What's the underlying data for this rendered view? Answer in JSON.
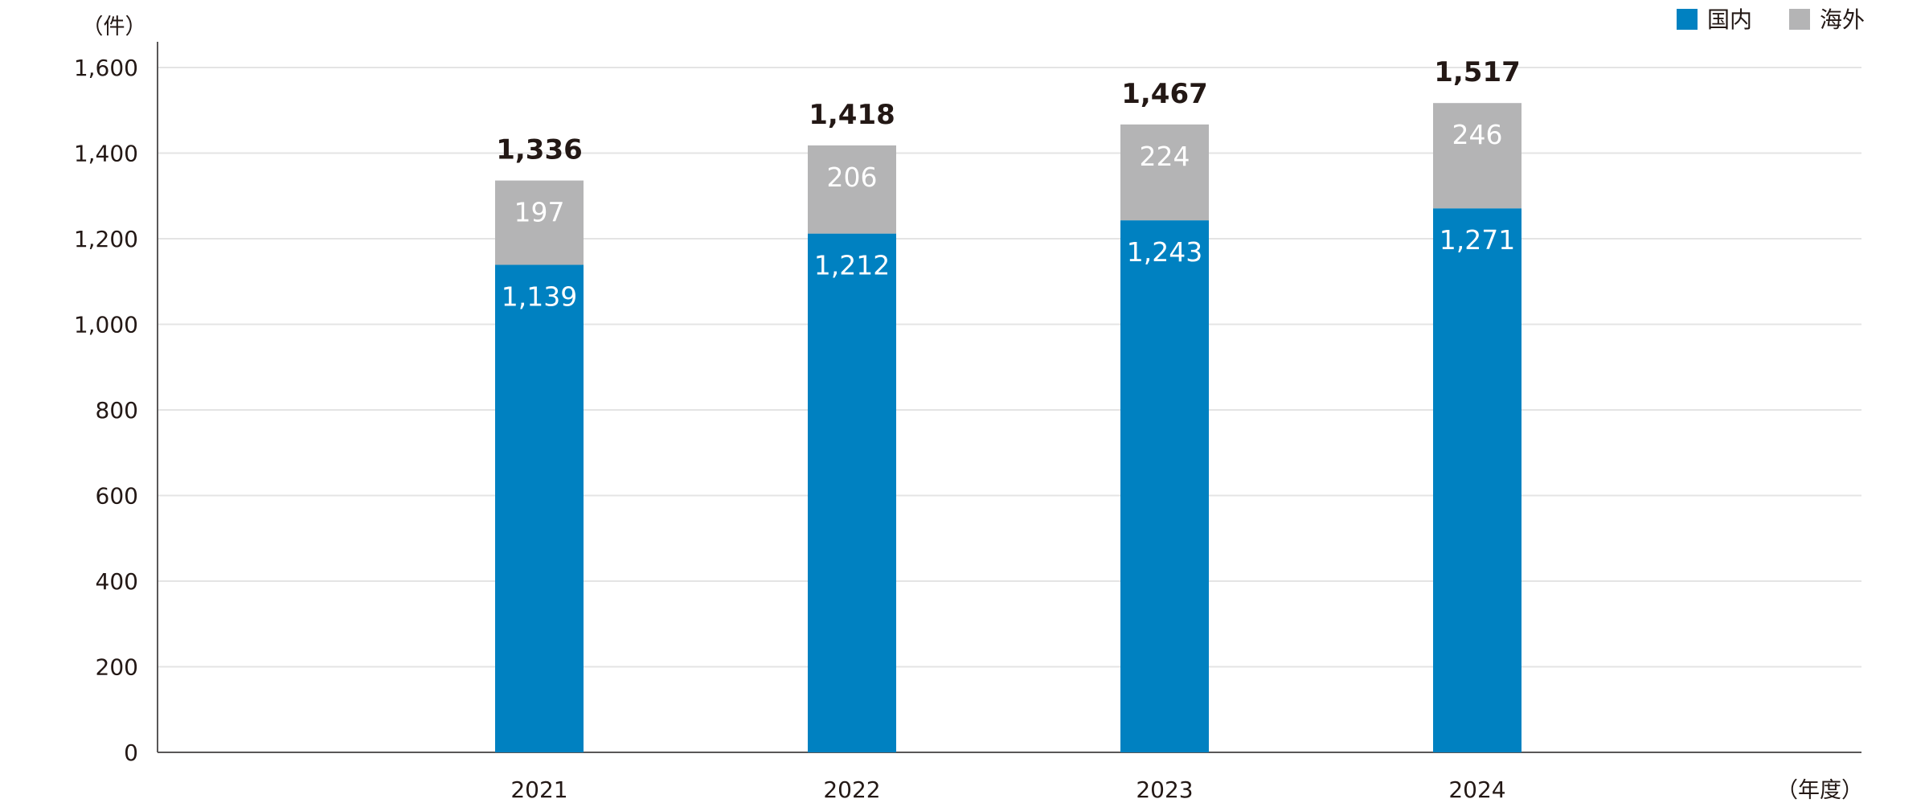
{
  "chart_data": {
    "type": "bar",
    "stacked": true,
    "title": "",
    "xlabel": "（年度）",
    "ylabel": "（件）",
    "categories": [
      "2021",
      "2022",
      "2023",
      "2024"
    ],
    "series": [
      {
        "name": "国内",
        "color": "#0081C1",
        "values": [
          1139,
          1212,
          1243,
          1271
        ]
      },
      {
        "name": "海外",
        "color": "#B4B4B5",
        "values": [
          197,
          206,
          224,
          246
        ]
      }
    ],
    "totals": [
      1336,
      1418,
      1467,
      1517
    ],
    "ylim": [
      0,
      1600
    ],
    "yticks": [
      0,
      200,
      400,
      600,
      800,
      1000,
      1200,
      1400,
      1600
    ],
    "grid": true,
    "legend": "top-right"
  }
}
